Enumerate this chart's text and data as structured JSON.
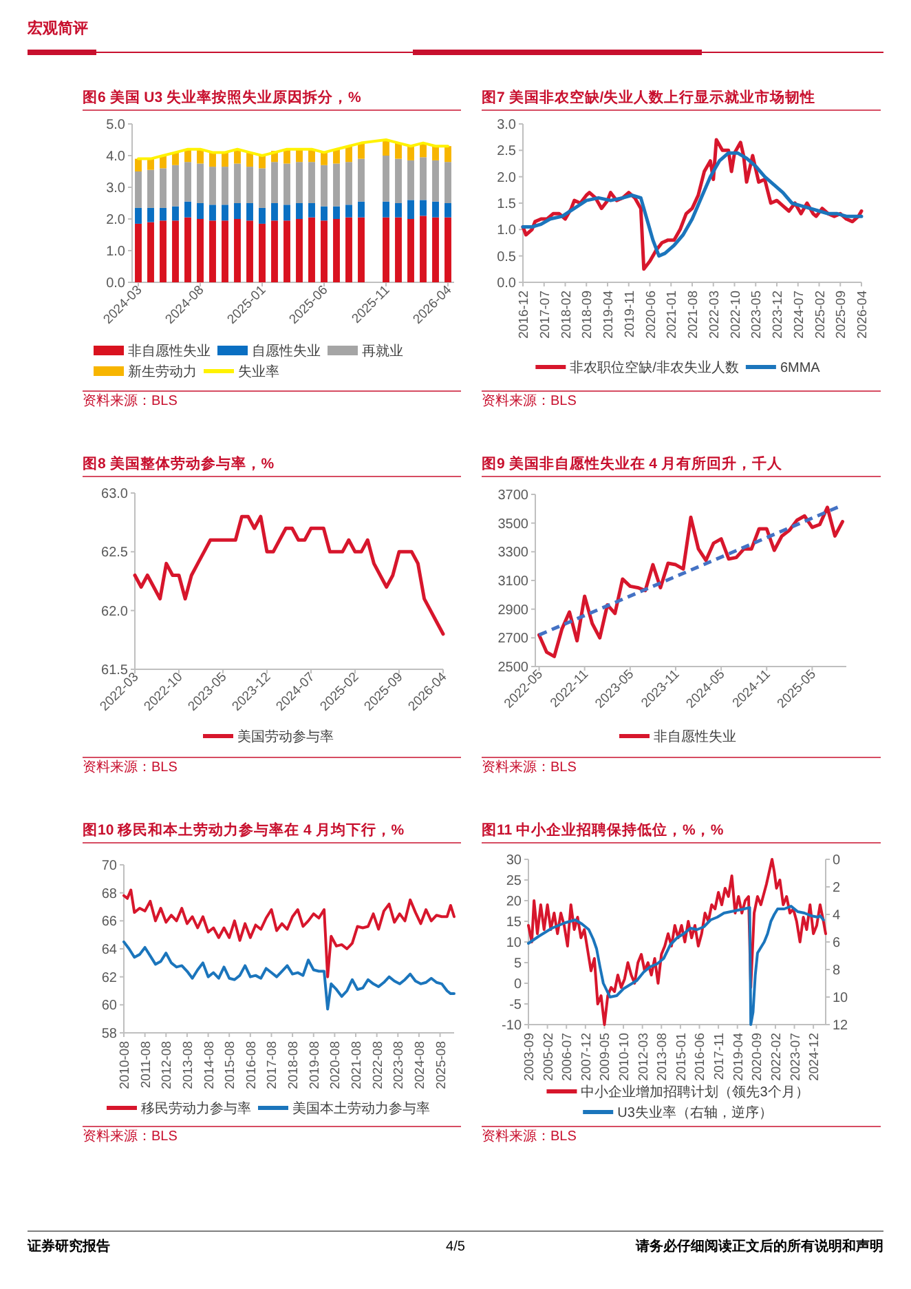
{
  "chart_data": [
    {
      "type": "other",
      "title": "宏观简评"
    },
    {
      "type": "bar",
      "title": "图6  美国 U3 失业率按照失业原因拆分，%",
      "stacked": true,
      "legend": "bottom",
      "categories": [
        "2024-03",
        null,
        null,
        null,
        null,
        "2024-08",
        null,
        null,
        null,
        null,
        "2025-01",
        null,
        null,
        null,
        null,
        "2025-06",
        null,
        null,
        null,
        null,
        "2025-11",
        null,
        null,
        null,
        null,
        "2026-04"
      ],
      "ylim": [
        0,
        5
      ],
      "yticks": [
        {
          "value": 0,
          "label": "0.0"
        },
        {
          "value": 1,
          "label": "1.0"
        },
        {
          "value": 2,
          "label": "2.0"
        },
        {
          "value": 3,
          "label": "3.0"
        },
        {
          "value": 4,
          "label": "4.0"
        },
        {
          "value": 5,
          "label": "5.0"
        }
      ],
      "series": [
        {
          "name": "非自愿性失业",
          "color": "#d9121f",
          "values": [
            1.85,
            1.9,
            1.95,
            1.95,
            2.05,
            2.0,
            1.95,
            1.95,
            2.0,
            1.95,
            1.85,
            1.95,
            1.95,
            2.0,
            2.05,
            1.95,
            2.0,
            2.05,
            2.05,
            null,
            2.05,
            2.05,
            2.0,
            2.1,
            2.05,
            2.05
          ]
        },
        {
          "name": "自愿性失业",
          "color": "#0a6fc2",
          "values": [
            0.5,
            0.45,
            0.4,
            0.45,
            0.5,
            0.5,
            0.5,
            0.5,
            0.5,
            0.55,
            0.5,
            0.55,
            0.5,
            0.5,
            0.45,
            0.45,
            0.4,
            0.4,
            0.5,
            null,
            0.5,
            0.45,
            0.6,
            0.5,
            0.5,
            0.45
          ]
        },
        {
          "name": "再就业",
          "color": "#a5a5a5",
          "values": [
            1.15,
            1.2,
            1.25,
            1.3,
            1.25,
            1.25,
            1.2,
            1.2,
            1.25,
            1.15,
            1.25,
            1.3,
            1.3,
            1.3,
            1.3,
            1.3,
            1.35,
            1.35,
            1.35,
            null,
            1.45,
            1.4,
            1.25,
            1.35,
            1.3,
            1.3
          ]
        },
        {
          "name": "新生劳动力",
          "color": "#f7b500",
          "values": [
            0.4,
            0.35,
            0.4,
            0.4,
            0.4,
            0.45,
            0.45,
            0.45,
            0.45,
            0.45,
            0.4,
            0.35,
            0.45,
            0.4,
            0.4,
            0.4,
            0.45,
            0.5,
            0.5,
            null,
            0.5,
            0.5,
            0.45,
            0.45,
            0.45,
            0.5
          ]
        },
        {
          "name": "失业率",
          "type": "line",
          "color": "#fff200",
          "values": [
            3.9,
            3.9,
            4.0,
            4.1,
            4.2,
            4.2,
            4.1,
            4.1,
            4.2,
            4.1,
            4.0,
            4.1,
            4.2,
            4.2,
            4.2,
            4.1,
            4.2,
            4.3,
            4.4,
            null,
            4.5,
            4.4,
            4.3,
            4.4,
            4.3,
            4.3
          ]
        }
      ],
      "annotations": [
        "资料来源：BLS"
      ]
    },
    {
      "type": "line",
      "title": "图7  美国非农空缺/失业人数上行显示就业市场韧性",
      "legend": "bottom",
      "xlim": [
        "2016-12",
        "2026-04"
      ],
      "xticks": [
        "2016-12",
        "2017-07",
        "2018-02",
        "2018-09",
        "2019-04",
        "2019-11",
        "2020-06",
        "2021-01",
        "2021-08",
        "2022-03",
        "2022-10",
        "2023-05",
        "2023-12",
        "2024-07",
        "2025-02",
        "2025-09",
        "2026-04"
      ],
      "ylim": [
        0,
        3
      ],
      "yticks": [
        {
          "value": 0,
          "label": "0.0"
        },
        {
          "value": 0.5,
          "label": "0.5"
        },
        {
          "value": 1,
          "label": "1.0"
        },
        {
          "value": 1.5,
          "label": "1.5"
        },
        {
          "value": 2,
          "label": "2.0"
        },
        {
          "value": 2.5,
          "label": "2.5"
        },
        {
          "value": 3,
          "label": "3.0"
        }
      ],
      "series": [
        {
          "name": "非农职位空缺/非农失业人数",
          "color": "#d7162c",
          "x": [
            "2016-12",
            "2017-01",
            "2017-03",
            "2017-04",
            "2017-06",
            "2017-08",
            "2017-10",
            "2017-12",
            "2018-02",
            "2018-04",
            "2018-05",
            "2018-07",
            "2018-09",
            "2018-10",
            "2018-12",
            "2019-02",
            "2019-04",
            "2019-05",
            "2019-07",
            "2019-09",
            "2019-11",
            "2020-01",
            "2020-03",
            "2020-04",
            "2020-06",
            "2020-08",
            "2020-10",
            "2020-12",
            "2021-02",
            "2021-04",
            "2021-06",
            "2021-08",
            "2021-10",
            "2021-12",
            "2022-02",
            "2022-03",
            "2022-04",
            "2022-06",
            "2022-08",
            "2022-09",
            "2022-10",
            "2022-12",
            "2023-01",
            "2023-02",
            "2023-04",
            "2023-06",
            "2023-08",
            "2023-10",
            "2023-12",
            "2024-02",
            "2024-04",
            "2024-06",
            "2024-08",
            "2024-10",
            "2024-12",
            "2025-01",
            "2025-03",
            "2025-05",
            "2025-07",
            "2025-09",
            "2025-11",
            "2026-01",
            "2026-03",
            "2026-04"
          ],
          "values": [
            1.05,
            0.9,
            1.0,
            1.15,
            1.2,
            1.2,
            1.3,
            1.3,
            1.2,
            1.4,
            1.55,
            1.5,
            1.65,
            1.7,
            1.6,
            1.4,
            1.55,
            1.7,
            1.55,
            1.6,
            1.7,
            1.6,
            1.4,
            0.25,
            0.4,
            0.6,
            0.75,
            0.8,
            0.8,
            1.0,
            1.3,
            1.4,
            1.65,
            2.1,
            2.3,
            1.95,
            2.7,
            2.5,
            2.5,
            2.1,
            2.45,
            2.65,
            2.4,
            1.9,
            2.4,
            1.9,
            1.95,
            1.5,
            1.55,
            1.45,
            1.35,
            1.5,
            1.3,
            1.5,
            1.3,
            1.25,
            1.4,
            1.3,
            1.25,
            1.3,
            1.2,
            1.15,
            1.25,
            1.35
          ]
        },
        {
          "name": "6MMA",
          "color": "#1b75bc",
          "x": [
            "2016-12",
            "2017-03",
            "2017-06",
            "2017-09",
            "2018-01",
            "2018-05",
            "2018-09",
            "2019-01",
            "2019-05",
            "2019-09",
            "2019-12",
            "2020-03",
            "2020-05",
            "2020-07",
            "2020-09",
            "2020-11",
            "2021-02",
            "2021-05",
            "2021-08",
            "2021-11",
            "2022-02",
            "2022-05",
            "2022-08",
            "2022-11",
            "2023-02",
            "2023-05",
            "2023-08",
            "2023-11",
            "2024-02",
            "2024-05",
            "2024-08",
            "2024-11",
            "2025-02",
            "2025-05",
            "2025-08",
            "2025-11",
            "2026-04"
          ],
          "values": [
            1.05,
            1.05,
            1.1,
            1.2,
            1.25,
            1.4,
            1.55,
            1.6,
            1.55,
            1.6,
            1.65,
            1.6,
            1.2,
            0.8,
            0.5,
            0.55,
            0.7,
            0.9,
            1.2,
            1.6,
            2.0,
            2.3,
            2.45,
            2.45,
            2.35,
            2.2,
            2.0,
            1.85,
            1.7,
            1.5,
            1.45,
            1.4,
            1.35,
            1.3,
            1.3,
            1.25,
            1.25
          ]
        }
      ],
      "annotations": [
        "资料来源：BLS"
      ]
    },
    {
      "type": "line",
      "title": "图8  美国整体劳动参与率，%",
      "legend": "bottom",
      "xlim": [
        "2022-03",
        "2026-04"
      ],
      "xticks": [
        "2022-03",
        "2022-10",
        "2023-05",
        "2023-12",
        "2024-07",
        "2025-02",
        "2025-09",
        "2026-04"
      ],
      "ylim": [
        61.5,
        63
      ],
      "yticks": [
        {
          "value": 61.5,
          "label": "61.5"
        },
        {
          "value": 62,
          "label": "62.0"
        },
        {
          "value": 62.5,
          "label": "62.5"
        },
        {
          "value": 63,
          "label": "63.0"
        }
      ],
      "series": [
        {
          "name": "美国劳动参与率",
          "color": "#d7162c",
          "x": [
            "2022-03",
            "2022-04",
            "2022-05",
            "2022-06",
            "2022-07",
            "2022-08",
            "2022-09",
            "2022-10",
            "2022-11",
            "2022-12",
            "2023-01",
            "2023-02",
            "2023-03",
            "2023-04",
            "2023-05",
            "2023-06",
            "2023-07",
            "2023-08",
            "2023-09",
            "2023-10",
            "2023-11",
            "2023-12",
            "2024-01",
            "2024-02",
            "2024-03",
            "2024-04",
            "2024-05",
            "2024-06",
            "2024-07",
            "2024-08",
            "2024-09",
            "2024-10",
            "2024-11",
            "2024-12",
            "2025-01",
            "2025-02",
            "2025-03",
            "2025-04",
            "2025-05",
            "2025-06",
            "2025-07",
            "2025-08",
            "2025-09",
            "2025-11",
            "2025-12",
            "2026-01",
            "2026-02",
            "2026-03",
            "2026-04"
          ],
          "values": [
            62.3,
            62.2,
            62.3,
            62.2,
            62.1,
            62.4,
            62.3,
            62.3,
            62.1,
            62.3,
            62.4,
            62.5,
            62.6,
            62.6,
            62.6,
            62.6,
            62.6,
            62.8,
            62.8,
            62.7,
            62.8,
            62.5,
            62.5,
            62.6,
            62.7,
            62.7,
            62.6,
            62.6,
            62.7,
            62.7,
            62.7,
            62.5,
            62.5,
            62.5,
            62.6,
            62.5,
            62.5,
            62.6,
            62.4,
            62.3,
            62.2,
            62.3,
            62.5,
            62.5,
            62.4,
            62.1,
            62.0,
            61.9,
            61.8
          ]
        }
      ],
      "annotations": [
        "资料来源：BLS"
      ]
    },
    {
      "type": "line",
      "title": "图9  美国非自愿性失业在 4 月有所回升，千人",
      "legend": "bottom",
      "categories": [
        "2022-05",
        null,
        null,
        null,
        null,
        null,
        "2022-11",
        null,
        null,
        null,
        null,
        null,
        "2023-05",
        null,
        null,
        null,
        null,
        null,
        "2023-11",
        null,
        null,
        null,
        null,
        null,
        "2024-05",
        null,
        null,
        null,
        null,
        null,
        "2024-11",
        null,
        null,
        null,
        null,
        null,
        "2025-05",
        null,
        null,
        null,
        null
      ],
      "ylim": [
        2500,
        3700
      ],
      "yticks": [
        2500,
        2700,
        2900,
        3100,
        3300,
        3500,
        3700
      ],
      "series": [
        {
          "name": "非自愿性失业",
          "color": "#d7162c",
          "values": [
            2720,
            2600,
            2570,
            2760,
            2880,
            2680,
            2990,
            2800,
            2700,
            2930,
            2870,
            3110,
            3060,
            3050,
            3030,
            3210,
            3050,
            3220,
            3210,
            3180,
            3540,
            3320,
            3240,
            3360,
            3390,
            3250,
            3260,
            3320,
            3320,
            3460,
            3460,
            3310,
            3410,
            3450,
            3520,
            3550,
            3470,
            3490,
            3610,
            3410,
            3510
          ]
        },
        {
          "color": "#4472c4",
          "line_style": "dashed",
          "values": [
            2720,
            null,
            null,
            null,
            null,
            null,
            null,
            null,
            null,
            null,
            null,
            null,
            null,
            null,
            null,
            null,
            null,
            null,
            null,
            null,
            null,
            null,
            null,
            null,
            null,
            null,
            null,
            null,
            null,
            null,
            null,
            null,
            null,
            null,
            null,
            null,
            null,
            null,
            null,
            null,
            3625
          ]
        }
      ],
      "annotations": [
        "资料来源：BLS"
      ]
    },
    {
      "type": "line",
      "title": "图10  移民和本土劳动力参与率在 4 月均下行，%",
      "legend": "bottom",
      "xlim": [
        "2010-08",
        "2026-04"
      ],
      "xticks": [
        "2010-08",
        "2011-08",
        "2012-08",
        "2013-08",
        "2014-08",
        "2015-08",
        "2016-08",
        "2017-08",
        "2018-08",
        "2019-08",
        "2020-08",
        "2021-08",
        "2022-08",
        "2023-08",
        "2024-08",
        "2025-08"
      ],
      "ylim": [
        58,
        70
      ],
      "yticks": [
        58,
        60,
        62,
        64,
        66,
        68,
        70
      ],
      "series": [
        {
          "name": "移民劳动力参与率",
          "color": "#d7162c",
          "x": [
            "2010-08",
            "2010-10",
            "2010-12",
            "2011-02",
            "2011-05",
            "2011-08",
            "2011-11",
            "2012-02",
            "2012-05",
            "2012-08",
            "2012-11",
            "2013-02",
            "2013-05",
            "2013-08",
            "2013-11",
            "2014-02",
            "2014-05",
            "2014-08",
            "2014-11",
            "2015-02",
            "2015-05",
            "2015-08",
            "2015-11",
            "2016-02",
            "2016-05",
            "2016-08",
            "2016-11",
            "2017-02",
            "2017-05",
            "2017-08",
            "2017-11",
            "2018-02",
            "2018-05",
            "2018-08",
            "2018-11",
            "2019-02",
            "2019-05",
            "2019-08",
            "2019-11",
            "2020-02",
            "2020-04",
            "2020-06",
            "2020-09",
            "2020-12",
            "2021-03",
            "2021-06",
            "2021-09",
            "2021-12",
            "2022-03",
            "2022-06",
            "2022-09",
            "2022-12",
            "2023-03",
            "2023-06",
            "2023-09",
            "2023-12",
            "2024-03",
            "2024-06",
            "2024-09",
            "2024-12",
            "2025-03",
            "2025-06",
            "2025-09",
            "2025-12",
            "2026-02",
            "2026-04"
          ],
          "values": [
            67.8,
            67.6,
            68.2,
            66.6,
            66.9,
            66.7,
            67.4,
            66.0,
            66.9,
            65.9,
            66.4,
            66.0,
            66.9,
            65.8,
            66.3,
            65.5,
            66.3,
            65.2,
            65.5,
            64.8,
            65.5,
            64.8,
            66.0,
            64.6,
            65.8,
            64.8,
            65.7,
            65.4,
            66.2,
            66.8,
            65.3,
            65.8,
            65.4,
            66.3,
            66.8,
            65.6,
            66.0,
            66.5,
            66.2,
            66.8,
            62.0,
            64.9,
            64.2,
            64.3,
            64.0,
            64.4,
            65.6,
            65.5,
            65.6,
            66.5,
            65.4,
            66.7,
            67.2,
            65.9,
            66.5,
            66.0,
            67.5,
            66.6,
            65.8,
            66.8,
            66.0,
            66.4,
            66.3,
            66.3,
            67.1,
            66.3
          ]
        },
        {
          "name": "美国本土劳动力参与率",
          "color": "#1b75bc",
          "x": [
            "2010-08",
            "2010-11",
            "2011-02",
            "2011-05",
            "2011-08",
            "2011-11",
            "2012-02",
            "2012-05",
            "2012-08",
            "2012-11",
            "2013-02",
            "2013-05",
            "2013-08",
            "2013-11",
            "2014-02",
            "2014-05",
            "2014-08",
            "2014-11",
            "2015-02",
            "2015-05",
            "2015-08",
            "2015-11",
            "2016-02",
            "2016-05",
            "2016-08",
            "2016-11",
            "2017-02",
            "2017-05",
            "2017-08",
            "2017-11",
            "2018-02",
            "2018-05",
            "2018-08",
            "2018-11",
            "2019-02",
            "2019-05",
            "2019-08",
            "2019-11",
            "2020-02",
            "2020-04",
            "2020-06",
            "2020-09",
            "2020-12",
            "2021-03",
            "2021-06",
            "2021-09",
            "2021-12",
            "2022-03",
            "2022-06",
            "2022-09",
            "2022-12",
            "2023-03",
            "2023-06",
            "2023-09",
            "2023-12",
            "2024-03",
            "2024-06",
            "2024-09",
            "2024-12",
            "2025-03",
            "2025-06",
            "2025-09",
            "2025-12",
            "2026-02",
            "2026-04"
          ],
          "values": [
            64.5,
            64.0,
            63.4,
            63.6,
            64.1,
            63.5,
            62.9,
            63.1,
            63.7,
            63.0,
            62.7,
            62.8,
            62.4,
            61.9,
            62.5,
            63.0,
            62.0,
            62.3,
            61.9,
            62.7,
            61.9,
            61.8,
            62.1,
            62.8,
            62.0,
            62.1,
            61.9,
            62.6,
            62.3,
            62.0,
            62.4,
            62.8,
            62.2,
            62.3,
            62.1,
            63.2,
            62.5,
            62.4,
            62.4,
            59.7,
            61.5,
            61.1,
            60.6,
            61.0,
            61.8,
            61.1,
            61.2,
            61.8,
            61.5,
            61.3,
            61.6,
            62.0,
            61.7,
            61.5,
            61.8,
            62.2,
            61.7,
            61.5,
            61.6,
            61.9,
            61.6,
            61.5,
            61.0,
            60.8,
            60.8
          ]
        }
      ],
      "annotations": [
        "资料来源：BLS"
      ]
    },
    {
      "type": "line",
      "title": "图11  中小企业招聘保持低位，%，%",
      "legend": "bottom",
      "xlim": [
        "2003-09",
        "2025-11"
      ],
      "xticks": [
        "2003-09",
        "2005-02",
        "2006-07",
        "2007-12",
        "2009-05",
        "2010-10",
        "2012-03",
        "2013-08",
        "2015-01",
        "2016-06",
        "2017-11",
        "2019-04",
        "2020-09",
        "2022-02",
        "2023-07",
        "2024-12"
      ],
      "ylim": [
        -10,
        30
      ],
      "yticks": [
        -10,
        -5,
        0,
        5,
        10,
        15,
        20,
        25,
        30
      ],
      "y2lim": [
        12,
        0
      ],
      "y2ticks": [
        0,
        2,
        4,
        6,
        8,
        10,
        12
      ],
      "series": [
        {
          "name": "中小企业增加招聘计划（领先3个月）",
          "color": "#d7162c",
          "x": [
            "2003-09",
            "2003-12",
            "2004-02",
            "2004-05",
            "2004-08",
            "2004-11",
            "2005-02",
            "2005-05",
            "2005-08",
            "2005-11",
            "2006-02",
            "2006-05",
            "2006-08",
            "2006-11",
            "2007-02",
            "2007-05",
            "2007-08",
            "2007-11",
            "2008-02",
            "2008-05",
            "2008-08",
            "2008-11",
            "2009-02",
            "2009-05",
            "2009-08",
            "2009-11",
            "2010-02",
            "2010-05",
            "2010-08",
            "2010-11",
            "2011-02",
            "2011-05",
            "2011-08",
            "2011-11",
            "2012-02",
            "2012-05",
            "2012-08",
            "2012-11",
            "2013-02",
            "2013-05",
            "2013-08",
            "2013-11",
            "2014-02",
            "2014-05",
            "2014-08",
            "2014-11",
            "2015-02",
            "2015-05",
            "2015-08",
            "2015-11",
            "2016-02",
            "2016-05",
            "2016-08",
            "2016-11",
            "2017-02",
            "2017-05",
            "2017-08",
            "2017-11",
            "2018-02",
            "2018-05",
            "2018-08",
            "2018-11",
            "2019-02",
            "2019-05",
            "2019-08",
            "2019-11",
            "2020-02",
            "2020-04",
            "2020-07",
            "2020-10",
            "2021-01",
            "2021-06",
            "2021-11",
            "2022-01",
            "2022-03",
            "2022-06",
            "2022-09",
            "2022-12",
            "2023-03",
            "2023-06",
            "2023-09",
            "2023-12",
            "2024-03",
            "2024-06",
            "2024-09",
            "2024-12",
            "2025-03",
            "2025-06",
            "2025-09",
            "2025-11"
          ],
          "values": [
            14,
            10,
            20,
            12,
            19,
            13,
            19,
            13,
            17,
            12,
            17,
            14,
            9,
            19,
            13,
            16,
            11,
            13,
            8,
            3,
            6,
            -5,
            -3,
            -10,
            -3,
            -1,
            -2,
            2,
            -1,
            1,
            5,
            2,
            0,
            5,
            7,
            3,
            5,
            2,
            6,
            0,
            7,
            9,
            12,
            9,
            14,
            11,
            14,
            10,
            15,
            11,
            14,
            9,
            12,
            17,
            15,
            19,
            18,
            22,
            19,
            23,
            21,
            26,
            17,
            21,
            17,
            20,
            21,
            -1,
            17,
            21,
            19,
            24,
            30,
            27,
            23,
            25,
            19,
            21,
            17,
            18,
            15,
            10,
            16,
            13,
            19,
            12,
            14,
            19,
            15,
            12
          ]
        },
        {
          "name": "U3失业率（右轴，逆序）",
          "color": "#1b75bc",
          "axis": "y2",
          "x": [
            "2003-09",
            "2004-06",
            "2005-06",
            "2006-06",
            "2007-03",
            "2007-09",
            "2008-03",
            "2008-07",
            "2008-10",
            "2009-01",
            "2009-04",
            "2009-07",
            "2009-10",
            "2010-04",
            "2010-10",
            "2011-04",
            "2011-10",
            "2012-04",
            "2012-10",
            "2013-04",
            "2013-10",
            "2014-04",
            "2014-10",
            "2015-04",
            "2015-10",
            "2016-04",
            "2016-10",
            "2017-04",
            "2017-10",
            "2018-04",
            "2018-10",
            "2019-04",
            "2019-10",
            "2020-03",
            "2020-04",
            "2020-06",
            "2020-08",
            "2020-10",
            "2021-01",
            "2021-04",
            "2021-07",
            "2021-10",
            "2022-01",
            "2022-04",
            "2022-10",
            "2023-04",
            "2023-10",
            "2024-04",
            "2024-10",
            "2025-04",
            "2025-06",
            "2025-09"
          ],
          "values": [
            6.1,
            5.6,
            5.0,
            4.6,
            4.4,
            4.7,
            5.1,
            5.8,
            6.5,
            7.8,
            9.0,
            9.5,
            10.0,
            9.9,
            9.4,
            9.1,
            8.8,
            8.2,
            7.8,
            7.6,
            7.2,
            6.2,
            5.7,
            5.4,
            5.0,
            5.1,
            4.9,
            4.4,
            4.2,
            3.9,
            3.8,
            3.7,
            3.6,
            3.5,
            12,
            11.1,
            8.4,
            6.8,
            6.4,
            6.0,
            5.4,
            4.5,
            4.0,
            3.6,
            3.6,
            3.4,
            3.8,
            3.9,
            4.1,
            4.2,
            4.1,
            4.4
          ]
        }
      ],
      "annotations": [
        "资料来源：BLS"
      ]
    },
    {
      "type": "other",
      "annotations": [
        "证券研究报告",
        "4/5",
        "请务必仔细阅读正文后的所有说明和声明"
      ]
    }
  ]
}
